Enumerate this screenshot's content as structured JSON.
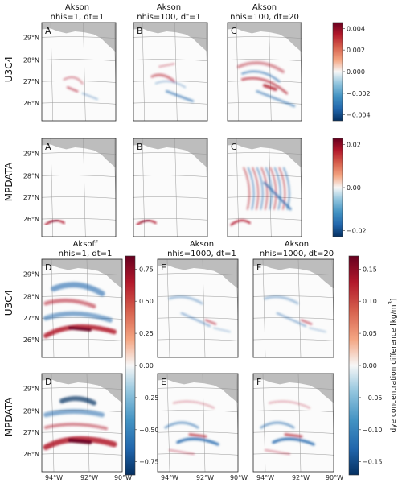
{
  "titles": {
    "top": [
      {
        "l1": "Akson",
        "l2": "nhis=1, dt=1"
      },
      {
        "l1": "Akson",
        "l2": "nhis=100, dt=1"
      },
      {
        "l1": "Akson",
        "l2": "nhis=100, dt=20"
      }
    ],
    "bottom": [
      {
        "l1": "Aksoff",
        "l2": "nhis=1, dt=1"
      },
      {
        "l1": "Akson",
        "l2": "nhis=1000, dt=1"
      },
      {
        "l1": "Akson",
        "l2": "nhis=1000, dt=20"
      }
    ]
  },
  "row_labels": {
    "u3c4": "U3C4",
    "mpdata": "MPDATA"
  },
  "panel_letters": [
    "A",
    "B",
    "C",
    "D",
    "E",
    "F"
  ],
  "lat_ticks": [
    "29°N",
    "28°N",
    "27°N",
    "26°N"
  ],
  "lon_ticks": [
    "94°W",
    "92°W",
    "90°W"
  ],
  "colorbars": {
    "cb1": [
      "0.004",
      "0.002",
      "0.000",
      "−0.002",
      "−0.004"
    ],
    "cb2": [
      "0.02",
      "0.00",
      "−0.02"
    ],
    "cb3": [
      "0.75",
      "0.50",
      "0.25",
      "0.00",
      "−0.25",
      "−0.50",
      "−0.75"
    ],
    "cb4": [
      "0.15",
      "0.10",
      "0.05",
      "0.00",
      "−0.05",
      "−0.10",
      "−0.15"
    ],
    "cb4_label": "dye concentration difference [kg/m",
    "cb4_label_sup": "3",
    "cb4_label_end": "]"
  },
  "colors": {
    "land": "#bdbdbd",
    "red": "#b2182b",
    "blue": "#2166ac"
  }
}
